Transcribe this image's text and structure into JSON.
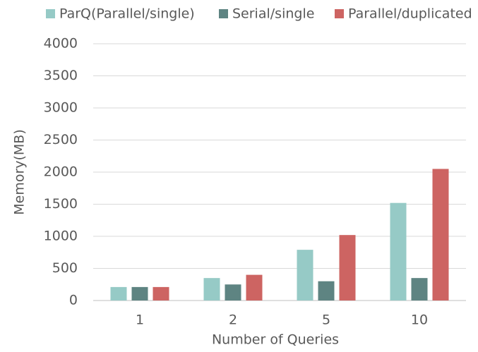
{
  "chart_data": {
    "type": "bar",
    "categories": [
      "1",
      "2",
      "5",
      "10"
    ],
    "series": [
      {
        "name": "ParQ(Parallel/single)",
        "color": "#96cac6",
        "values": [
          210,
          350,
          790,
          1520
        ]
      },
      {
        "name": "Serial/single",
        "color": "#5e8482",
        "values": [
          210,
          250,
          300,
          350
        ]
      },
      {
        "name": "Parallel/duplicated",
        "color": "#cd6462",
        "values": [
          210,
          400,
          1020,
          2050
        ]
      }
    ],
    "xlabel": "Number of Queries",
    "ylabel": "Memory(MB)",
    "ylim": [
      0,
      4000
    ],
    "yticks": [
      0,
      500,
      1000,
      1500,
      2000,
      2500,
      3000,
      3500,
      4000
    ],
    "grid": true,
    "legend": "top"
  }
}
